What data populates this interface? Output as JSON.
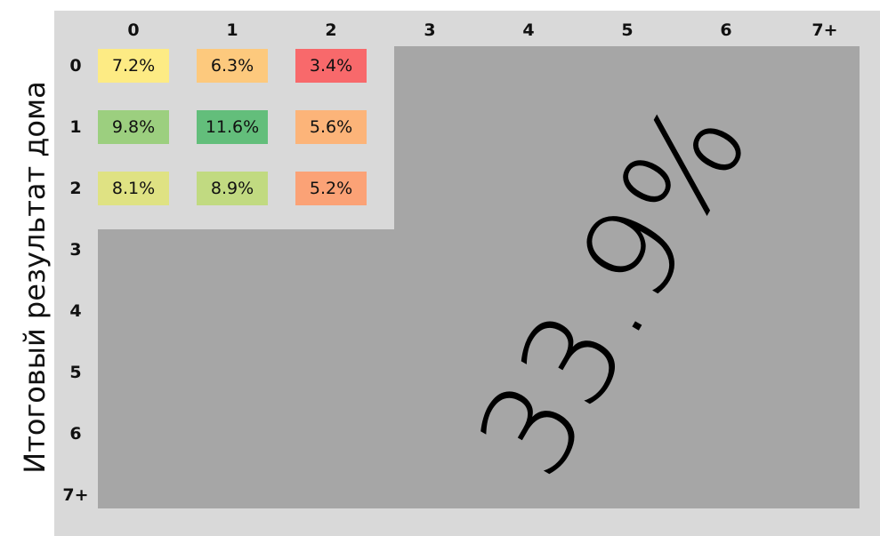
{
  "chart_data": {
    "type": "heatmap",
    "ylabel": "Итоговый результат дома",
    "columns": [
      "0",
      "1",
      "2",
      "3",
      "4",
      "5",
      "6",
      "7+"
    ],
    "rows": [
      "0",
      "1",
      "2",
      "3",
      "4",
      "5",
      "6",
      "7+"
    ],
    "cells": [
      {
        "row": "0",
        "col": "0",
        "label": "7.2%",
        "value": 7.2,
        "color": "#fdeb84"
      },
      {
        "row": "0",
        "col": "1",
        "label": "6.3%",
        "value": 6.3,
        "color": "#fdc97d"
      },
      {
        "row": "0",
        "col": "2",
        "label": "3.4%",
        "value": 3.4,
        "color": "#f8696b"
      },
      {
        "row": "1",
        "col": "0",
        "label": "9.8%",
        "value": 9.8,
        "color": "#9ccf7f"
      },
      {
        "row": "1",
        "col": "1",
        "label": "11.6%",
        "value": 11.6,
        "color": "#63be7b"
      },
      {
        "row": "1",
        "col": "2",
        "label": "5.6%",
        "value": 5.6,
        "color": "#fcb479"
      },
      {
        "row": "2",
        "col": "0",
        "label": "8.1%",
        "value": 8.1,
        "color": "#dfe283"
      },
      {
        "row": "2",
        "col": "1",
        "label": "8.9%",
        "value": 8.9,
        "color": "#c1da81"
      },
      {
        "row": "2",
        "col": "2",
        "label": "5.2%",
        "value": 5.2,
        "color": "#fba276"
      }
    ],
    "aggregate": {
      "label": "33.9%",
      "value": 33.9,
      "color": "#a6a6a6",
      "note_rows": [
        "3",
        "4",
        "5",
        "6",
        "7+"
      ],
      "note_cols": [
        "3",
        "4",
        "5",
        "6",
        "7+"
      ]
    }
  }
}
